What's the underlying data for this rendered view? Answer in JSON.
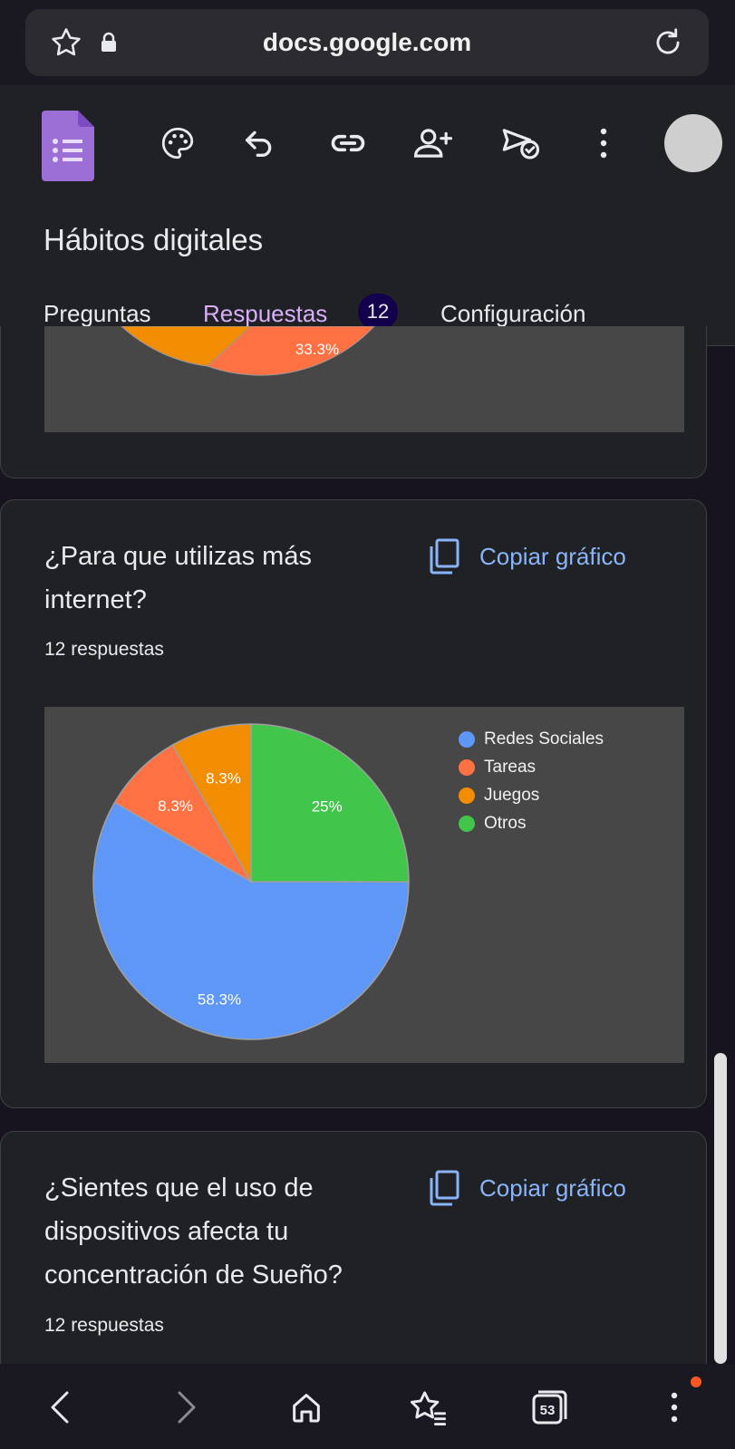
{
  "browser": {
    "url": "docs.google.com",
    "tabs_count": "53"
  },
  "form": {
    "title": "Hábitos digitales",
    "tabs": [
      {
        "label": "Preguntas"
      },
      {
        "label": "Respuestas",
        "badge": "12"
      },
      {
        "label": "Configuración"
      }
    ]
  },
  "top_chart": {
    "visible_label": "33.3%"
  },
  "questions": [
    {
      "title": "¿Para que utilizas más internet?",
      "responses": "12 respuestas",
      "copy_label": "Copiar gráfico"
    },
    {
      "title": "¿Sientes que el uso de dispositivos afecta tu concentración de Sueño?",
      "responses": "12 respuestas",
      "copy_label": "Copiar gráfico"
    }
  ],
  "chart_data": {
    "type": "pie",
    "categories": [
      "Redes Sociales",
      "Tareas",
      "Juegos",
      "Otros"
    ],
    "values": [
      58.3,
      8.3,
      8.3,
      25
    ],
    "labels": [
      "58.3%",
      "8.3%",
      "8.3%",
      "25%"
    ],
    "colors": [
      "#5e97f6",
      "#ff7043",
      "#f28c00",
      "#41c54a"
    ],
    "legend_position": "top-right"
  },
  "colors": {
    "accent": "#d7aefb",
    "link": "#8ab4f8",
    "chart_background": "#474747"
  }
}
